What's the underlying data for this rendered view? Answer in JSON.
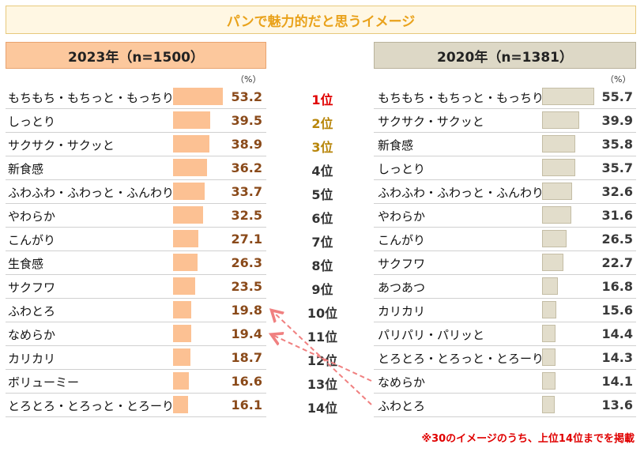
{
  "title": "パンで魅力的だと思うイメージ",
  "header_2023": "2023年（n=1500）",
  "header_2020": "2020年（n=1381）",
  "unit": "（%）",
  "footnote": "※30のイメージのうち、上位14位までを掲載",
  "colors": {
    "bar2023": "#fcc193",
    "bar2020": "#e2ddcb",
    "rank1": "#e00000",
    "rank23": "#b8860b",
    "arrow": "#f08080"
  },
  "chart_data": [
    {
      "type": "bar",
      "orientation": "horizontal",
      "title": "2023年（n=1500）",
      "unit": "%",
      "categories": [
        "もちもち・もちっと・もっちり",
        "しっとり",
        "サクサク・サクッと",
        "新食感",
        "ふわふわ・ふわっと・ふんわり",
        "やわらか",
        "こんがり",
        "生食感",
        "サクフワ",
        "ふわとろ",
        "なめらか",
        "カリカリ",
        "ボリューミー",
        "とろとろ・とろっと・とろーり"
      ],
      "values": [
        53.2,
        39.5,
        38.9,
        36.2,
        33.7,
        32.5,
        27.1,
        26.3,
        23.5,
        19.8,
        19.4,
        18.7,
        16.6,
        16.1
      ],
      "value_labels": [
        "53.2",
        "39.5",
        "38.9",
        "36.2",
        "33.7",
        "32.5",
        "27.1",
        "26.3",
        "23.5",
        "19.8",
        "19.4",
        "18.7",
        "16.6",
        "16.1"
      ]
    },
    {
      "type": "bar",
      "orientation": "horizontal",
      "title": "2020年（n=1381）",
      "unit": "%",
      "categories": [
        "もちもち・もちっと・もっちり",
        "サクサク・サクッと",
        "新食感",
        "しっとり",
        "ふわふわ・ふわっと・ふんわり",
        "やわらか",
        "こんがり",
        "サクフワ",
        "あつあつ",
        "カリカリ",
        "パリパリ・パリッと",
        "とろとろ・とろっと・とろーり",
        "なめらか",
        "ふわとろ"
      ],
      "values": [
        55.7,
        39.9,
        35.8,
        35.7,
        32.6,
        31.6,
        26.5,
        22.7,
        16.8,
        15.6,
        14.4,
        14.3,
        14.1,
        13.6
      ],
      "value_labels": [
        "55.7",
        "39.9",
        "35.8",
        "35.7",
        "32.6",
        "31.6",
        "26.5",
        "22.7",
        "16.8",
        "15.6",
        "14.4",
        "14.3",
        "14.1",
        "13.6"
      ]
    }
  ],
  "ranks": [
    "1位",
    "2位",
    "3位",
    "4位",
    "5位",
    "6位",
    "7位",
    "8位",
    "9位",
    "10位",
    "11位",
    "12位",
    "13位",
    "14位"
  ],
  "arrows": [
    {
      "from_2020": "ふわとろ",
      "to_2023": "ふわとろ"
    },
    {
      "from_2020": "なめらか",
      "to_2023": "なめらか"
    }
  ]
}
